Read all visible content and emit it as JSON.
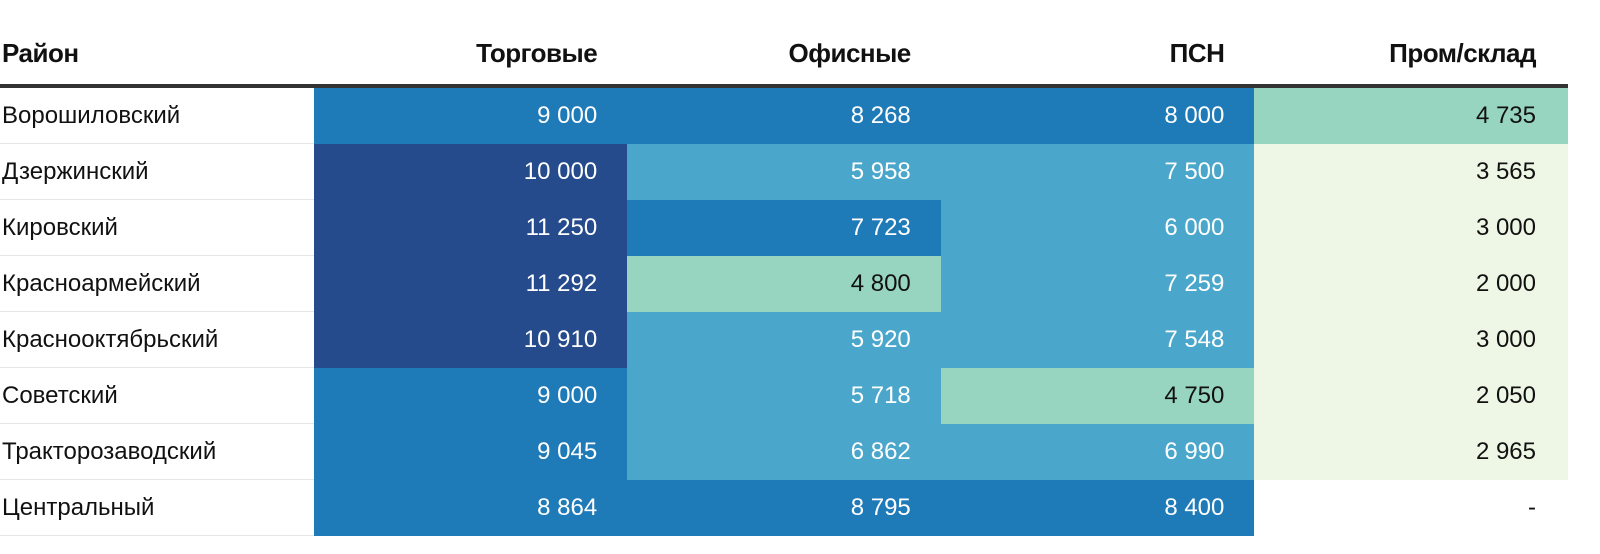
{
  "chart_data": {
    "type": "heatmap",
    "columns": [
      "Район",
      "Торговые",
      "Офисные",
      "ПСН",
      "Пром/склад"
    ],
    "color_scale": [
      "#eef7e6",
      "#97d5c0",
      "#4aa7cb",
      "#1f7ab8",
      "#254b8c"
    ],
    "rows": [
      {
        "name": "Ворошиловский",
        "values": [
          "9 000",
          "8 268",
          "8 000",
          "4 735"
        ],
        "levels": [
          3,
          3,
          3,
          1
        ]
      },
      {
        "name": "Дзержинский",
        "values": [
          "10 000",
          "5 958",
          "7 500",
          "3 565"
        ],
        "levels": [
          4,
          2,
          2,
          0
        ]
      },
      {
        "name": "Кировский",
        "values": [
          "11 250",
          "7 723",
          "6 000",
          "3 000"
        ],
        "levels": [
          4,
          3,
          2,
          0
        ]
      },
      {
        "name": "Красноармейский",
        "values": [
          "11 292",
          "4 800",
          "7 259",
          "2 000"
        ],
        "levels": [
          4,
          1,
          2,
          0
        ]
      },
      {
        "name": "Краснооктябрьский",
        "values": [
          "10 910",
          "5 920",
          "7 548",
          "3 000"
        ],
        "levels": [
          4,
          2,
          2,
          0
        ]
      },
      {
        "name": "Советский",
        "values": [
          "9 000",
          "5 718",
          "4 750",
          "2 050"
        ],
        "levels": [
          3,
          2,
          1,
          0
        ]
      },
      {
        "name": "Тракторозаводский",
        "values": [
          "9 045",
          "6 862",
          "6 990",
          "2 965"
        ],
        "levels": [
          3,
          2,
          2,
          0
        ]
      },
      {
        "name": "Центральный",
        "values": [
          "8 864",
          "8 795",
          "8 400",
          "-"
        ],
        "levels": [
          3,
          3,
          3,
          null
        ]
      }
    ]
  }
}
